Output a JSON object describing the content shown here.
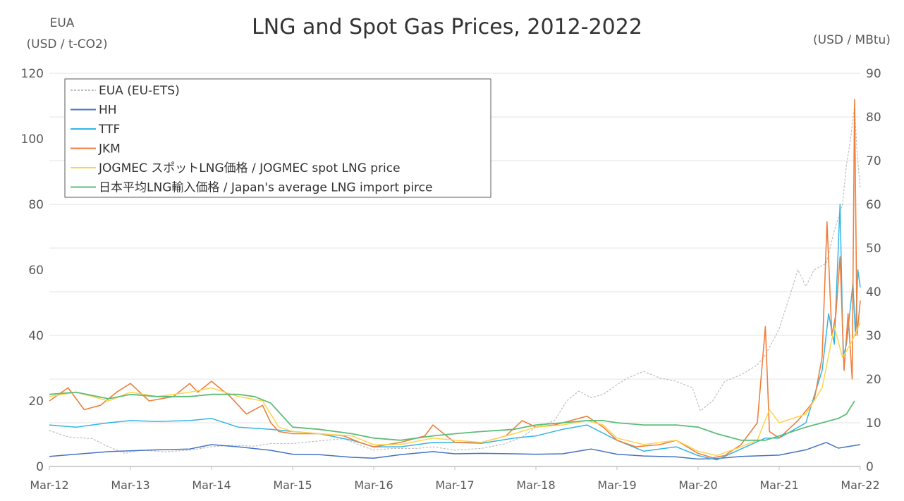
{
  "chart_data": {
    "type": "line",
    "title": "LNG and Spot Gas Prices, 2012-2022",
    "ylabel_left_line1": "EUA",
    "ylabel_left_line2": "(USD / t-CO2)",
    "ylabel_right": "(USD / MBtu)",
    "x_domain": [
      2012.17,
      2022.17
    ],
    "x_ticks": [
      {
        "x": 2012.17,
        "label": "Mar-12"
      },
      {
        "x": 2013.17,
        "label": "Mar-13"
      },
      {
        "x": 2014.17,
        "label": "Mar-14"
      },
      {
        "x": 2015.17,
        "label": "Mar-15"
      },
      {
        "x": 2016.17,
        "label": "Mar-16"
      },
      {
        "x": 2017.17,
        "label": "Mar-17"
      },
      {
        "x": 2018.17,
        "label": "Mar-18"
      },
      {
        "x": 2019.17,
        "label": "Mar-19"
      },
      {
        "x": 2020.17,
        "label": "Mar-20"
      },
      {
        "x": 2021.17,
        "label": "Mar-21"
      },
      {
        "x": 2022.17,
        "label": "Mar-22"
      }
    ],
    "ylim_left": [
      0,
      120
    ],
    "yticks_left": [
      0,
      20,
      40,
      60,
      80,
      100,
      120
    ],
    "ylim_right": [
      0,
      90
    ],
    "yticks_right": [
      0,
      10,
      20,
      30,
      40,
      50,
      60,
      70,
      80,
      90
    ],
    "grid": true,
    "legend_position": "top-left",
    "series": [
      {
        "name": "EUA (EU-ETS)",
        "axis": "left",
        "color": "#bfbfbf",
        "dashed": true,
        "width": 1.2,
        "points": [
          [
            2012.17,
            11
          ],
          [
            2012.4,
            9
          ],
          [
            2012.7,
            8.5
          ],
          [
            2012.9,
            6
          ],
          [
            2013.1,
            4
          ],
          [
            2013.3,
            5
          ],
          [
            2013.6,
            4.5
          ],
          [
            2013.9,
            5
          ],
          [
            2014.17,
            6
          ],
          [
            2014.4,
            6.5
          ],
          [
            2014.7,
            6.2
          ],
          [
            2014.9,
            7
          ],
          [
            2015.17,
            7
          ],
          [
            2015.5,
            7.8
          ],
          [
            2015.8,
            8.5
          ],
          [
            2016.0,
            6.5
          ],
          [
            2016.17,
            5
          ],
          [
            2016.4,
            5.5
          ],
          [
            2016.7,
            5.5
          ],
          [
            2016.9,
            6
          ],
          [
            2017.17,
            5
          ],
          [
            2017.5,
            5.5
          ],
          [
            2017.8,
            7
          ],
          [
            2018.0,
            9
          ],
          [
            2018.17,
            12
          ],
          [
            2018.4,
            14
          ],
          [
            2018.55,
            20
          ],
          [
            2018.7,
            23
          ],
          [
            2018.85,
            21
          ],
          [
            2019.0,
            22
          ],
          [
            2019.17,
            25
          ],
          [
            2019.3,
            27
          ],
          [
            2019.5,
            29
          ],
          [
            2019.7,
            27
          ],
          [
            2019.9,
            26
          ],
          [
            2020.1,
            24
          ],
          [
            2020.2,
            17
          ],
          [
            2020.35,
            20
          ],
          [
            2020.5,
            26
          ],
          [
            2020.7,
            28
          ],
          [
            2020.9,
            31
          ],
          [
            2021.0,
            34
          ],
          [
            2021.17,
            42
          ],
          [
            2021.3,
            52
          ],
          [
            2021.4,
            60
          ],
          [
            2021.5,
            55
          ],
          [
            2021.6,
            60
          ],
          [
            2021.75,
            62
          ],
          [
            2021.85,
            72
          ],
          [
            2021.95,
            80
          ],
          [
            2022.0,
            92
          ],
          [
            2022.05,
            100
          ],
          [
            2022.1,
            110
          ],
          [
            2022.13,
            96
          ],
          [
            2022.17,
            85
          ]
        ]
      },
      {
        "name": "HH",
        "axis": "right",
        "color": "#4472c4",
        "dashed": false,
        "width": 1.5,
        "points": [
          [
            2012.17,
            2.3
          ],
          [
            2012.5,
            2.8
          ],
          [
            2012.9,
            3.4
          ],
          [
            2013.17,
            3.6
          ],
          [
            2013.5,
            3.8
          ],
          [
            2013.9,
            4
          ],
          [
            2014.17,
            5
          ],
          [
            2014.5,
            4.5
          ],
          [
            2014.9,
            3.7
          ],
          [
            2015.17,
            2.8
          ],
          [
            2015.5,
            2.7
          ],
          [
            2015.9,
            2.1
          ],
          [
            2016.17,
            1.9
          ],
          [
            2016.5,
            2.7
          ],
          [
            2016.9,
            3.4
          ],
          [
            2017.17,
            2.9
          ],
          [
            2017.5,
            3
          ],
          [
            2017.9,
            2.9
          ],
          [
            2018.17,
            2.8
          ],
          [
            2018.5,
            2.9
          ],
          [
            2018.85,
            4
          ],
          [
            2019.17,
            2.8
          ],
          [
            2019.5,
            2.4
          ],
          [
            2019.9,
            2.2
          ],
          [
            2020.17,
            1.7
          ],
          [
            2020.4,
            1.8
          ],
          [
            2020.7,
            2.3
          ],
          [
            2021.17,
            2.6
          ],
          [
            2021.5,
            3.8
          ],
          [
            2021.75,
            5.5
          ],
          [
            2021.9,
            4.2
          ],
          [
            2022.0,
            4.5
          ],
          [
            2022.17,
            5
          ]
        ]
      },
      {
        "name": "TTF",
        "axis": "right",
        "color": "#33b5e5",
        "dashed": false,
        "width": 1.5,
        "points": [
          [
            2012.17,
            9.5
          ],
          [
            2012.5,
            9
          ],
          [
            2012.9,
            10
          ],
          [
            2013.17,
            10.5
          ],
          [
            2013.5,
            10.3
          ],
          [
            2013.9,
            10.5
          ],
          [
            2014.17,
            11
          ],
          [
            2014.5,
            9
          ],
          [
            2014.9,
            8.5
          ],
          [
            2015.17,
            8
          ],
          [
            2015.5,
            7.5
          ],
          [
            2015.9,
            6
          ],
          [
            2016.17,
            4.5
          ],
          [
            2016.5,
            4.5
          ],
          [
            2016.9,
            5.5
          ],
          [
            2017.17,
            5.5
          ],
          [
            2017.5,
            5.3
          ],
          [
            2017.9,
            6.5
          ],
          [
            2018.17,
            7
          ],
          [
            2018.5,
            8.5
          ],
          [
            2018.8,
            9.5
          ],
          [
            2019.17,
            6
          ],
          [
            2019.5,
            3.5
          ],
          [
            2019.9,
            4.5
          ],
          [
            2020.17,
            2.5
          ],
          [
            2020.4,
            1.5
          ],
          [
            2020.7,
            4
          ],
          [
            2021.0,
            6.5
          ],
          [
            2021.17,
            6.5
          ],
          [
            2021.5,
            10
          ],
          [
            2021.7,
            22
          ],
          [
            2021.78,
            35
          ],
          [
            2021.85,
            28
          ],
          [
            2021.92,
            60
          ],
          [
            2021.96,
            25
          ],
          [
            2022.0,
            28
          ],
          [
            2022.08,
            42
          ],
          [
            2022.11,
            30
          ],
          [
            2022.14,
            45
          ],
          [
            2022.17,
            41
          ]
        ]
      },
      {
        "name": "JKM",
        "axis": "right",
        "color": "#f07f3c",
        "dashed": false,
        "width": 1.6,
        "points": [
          [
            2012.17,
            15
          ],
          [
            2012.4,
            18
          ],
          [
            2012.6,
            13
          ],
          [
            2012.8,
            14
          ],
          [
            2013.0,
            17
          ],
          [
            2013.17,
            19
          ],
          [
            2013.4,
            15
          ],
          [
            2013.7,
            16
          ],
          [
            2013.9,
            19
          ],
          [
            2014.0,
            17
          ],
          [
            2014.17,
            19.5
          ],
          [
            2014.4,
            16
          ],
          [
            2014.6,
            12
          ],
          [
            2014.8,
            14
          ],
          [
            2014.9,
            10
          ],
          [
            2015.0,
            8
          ],
          [
            2015.17,
            7.5
          ],
          [
            2015.5,
            7.5
          ],
          [
            2015.8,
            7
          ],
          [
            2016.0,
            5.5
          ],
          [
            2016.17,
            4.5
          ],
          [
            2016.5,
            5.5
          ],
          [
            2016.8,
            7
          ],
          [
            2016.9,
            9.5
          ],
          [
            2017.0,
            8
          ],
          [
            2017.17,
            5.5
          ],
          [
            2017.5,
            5.5
          ],
          [
            2017.8,
            7
          ],
          [
            2018.0,
            10.5
          ],
          [
            2018.17,
            9
          ],
          [
            2018.4,
            9.5
          ],
          [
            2018.6,
            10.5
          ],
          [
            2018.8,
            11.5
          ],
          [
            2019.0,
            9
          ],
          [
            2019.17,
            6
          ],
          [
            2019.4,
            4.5
          ],
          [
            2019.7,
            5
          ],
          [
            2019.9,
            6
          ],
          [
            2020.17,
            3
          ],
          [
            2020.35,
            2
          ],
          [
            2020.5,
            2.5
          ],
          [
            2020.7,
            5
          ],
          [
            2020.9,
            10
          ],
          [
            2021.0,
            32
          ],
          [
            2021.05,
            8
          ],
          [
            2021.17,
            6.5
          ],
          [
            2021.4,
            10.5
          ],
          [
            2021.6,
            15
          ],
          [
            2021.7,
            25
          ],
          [
            2021.76,
            56
          ],
          [
            2021.82,
            30
          ],
          [
            2021.87,
            35
          ],
          [
            2021.92,
            48
          ],
          [
            2021.97,
            22
          ],
          [
            2022.02,
            35
          ],
          [
            2022.07,
            20
          ],
          [
            2022.1,
            84
          ],
          [
            2022.13,
            30
          ],
          [
            2022.17,
            38
          ]
        ]
      },
      {
        "name": "JOGMEC スポットLNG価格 / JOGMEC spot LNG price",
        "axis": "right",
        "color": "#ffd34d",
        "dashed": false,
        "width": 1.5,
        "points": [
          [
            2012.17,
            16
          ],
          [
            2012.5,
            17
          ],
          [
            2012.9,
            15
          ],
          [
            2013.17,
            17
          ],
          [
            2013.5,
            16
          ],
          [
            2013.9,
            17
          ],
          [
            2014.17,
            18
          ],
          [
            2014.5,
            16
          ],
          [
            2014.8,
            15
          ],
          [
            2015.0,
            9
          ],
          [
            2015.17,
            8
          ],
          [
            2015.5,
            7.5
          ],
          [
            2015.9,
            7
          ],
          [
            2016.17,
            5
          ],
          [
            2016.5,
            5
          ],
          [
            2016.9,
            6.5
          ],
          [
            2017.17,
            6
          ],
          [
            2017.5,
            5.5
          ],
          [
            2017.9,
            7.5
          ],
          [
            2018.17,
            9
          ],
          [
            2018.5,
            9.5
          ],
          [
            2018.8,
            10.5
          ],
          [
            2019.0,
            9.5
          ],
          [
            2019.17,
            6.5
          ],
          [
            2019.5,
            5
          ],
          [
            2019.9,
            6
          ],
          [
            2020.17,
            3.5
          ],
          [
            2020.4,
            2.5
          ],
          [
            2020.7,
            4.5
          ],
          [
            2020.9,
            6
          ],
          [
            2021.05,
            13
          ],
          [
            2021.17,
            10
          ],
          [
            2021.5,
            12
          ],
          [
            2021.7,
            18
          ],
          [
            2021.85,
            32
          ],
          [
            2021.95,
            25
          ],
          [
            2022.05,
            28
          ],
          [
            2022.17,
            33
          ]
        ]
      },
      {
        "name": "日本平均LNG輸入価格 / Japan's average LNG import pirce",
        "axis": "right",
        "color": "#5ebd7a",
        "dashed": false,
        "width": 1.8,
        "points": [
          [
            2012.17,
            16.5
          ],
          [
            2012.5,
            17
          ],
          [
            2012.9,
            15.5
          ],
          [
            2013.17,
            16.5
          ],
          [
            2013.5,
            16
          ],
          [
            2013.9,
            16
          ],
          [
            2014.17,
            16.5
          ],
          [
            2014.5,
            16.5
          ],
          [
            2014.7,
            16
          ],
          [
            2014.9,
            14.5
          ],
          [
            2015.17,
            9
          ],
          [
            2015.5,
            8.5
          ],
          [
            2015.9,
            7.5
          ],
          [
            2016.17,
            6.5
          ],
          [
            2016.5,
            6
          ],
          [
            2016.9,
            7
          ],
          [
            2017.17,
            7.5
          ],
          [
            2017.5,
            8
          ],
          [
            2017.9,
            8.5
          ],
          [
            2018.17,
            9.5
          ],
          [
            2018.5,
            10
          ],
          [
            2018.8,
            10.5
          ],
          [
            2019.0,
            10.5
          ],
          [
            2019.17,
            10
          ],
          [
            2019.5,
            9.5
          ],
          [
            2019.9,
            9.5
          ],
          [
            2020.17,
            9
          ],
          [
            2020.4,
            7.5
          ],
          [
            2020.7,
            6
          ],
          [
            2021.0,
            6
          ],
          [
            2021.17,
            7
          ],
          [
            2021.5,
            9
          ],
          [
            2021.7,
            10
          ],
          [
            2021.9,
            11
          ],
          [
            2022.0,
            12
          ],
          [
            2022.1,
            15
          ]
        ]
      }
    ]
  }
}
